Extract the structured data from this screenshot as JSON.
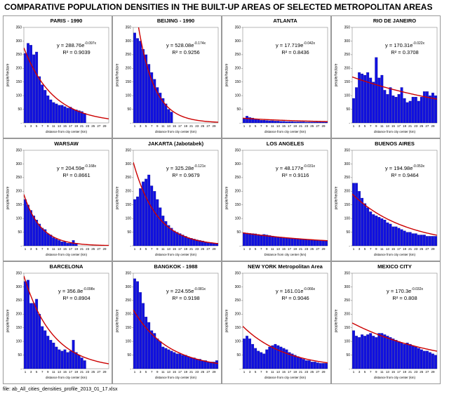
{
  "title": "COMPARATIVE POPULATION DENSITIES IN THE BUILT-UP AREAS OF SELECTED METROPOLITAN AREAS",
  "footer": "file: ab_All_cities_densities_profile_2013_01_17.xlsx",
  "chart_data": [
    {
      "type": "bar",
      "title": "PARIS - 1990",
      "x_label": "distance from city center (km)",
      "y_label": "people/hectare",
      "color": "#1010e0",
      "trend_color": "#cc0000",
      "categories": [
        1,
        null,
        3,
        null,
        5,
        null,
        7,
        null,
        9,
        null,
        11,
        null,
        13,
        null,
        15,
        null,
        17,
        null,
        19,
        null,
        21,
        null,
        23,
        null,
        25,
        null,
        27,
        null,
        29,
        null
      ],
      "values": [
        255,
        292,
        285,
        250,
        260,
        170,
        140,
        120,
        100,
        85,
        75,
        70,
        65,
        65,
        60,
        55,
        58,
        50,
        48,
        45,
        42,
        35,
        null,
        null,
        null,
        null,
        null,
        null,
        null,
        null
      ],
      "ylim": [
        0,
        350
      ],
      "yticks": [
        {
          "value": 0,
          "label": "-"
        },
        50,
        100,
        150,
        200,
        250,
        300,
        350
      ],
      "equation": "y = 288.76e",
      "exponent": "-0.097x",
      "r2": "R² = 0.9039",
      "fit": {
        "a": 288.76,
        "b": -0.097
      }
    },
    {
      "type": "bar",
      "title": "BEIJING - 1990",
      "x_label": "distance from city center (km)",
      "y_label": "people/hectare",
      "color": "#1010e0",
      "trend_color": "#cc0000",
      "categories": [
        1,
        null,
        3,
        null,
        5,
        null,
        7,
        null,
        9,
        null,
        11,
        null,
        13,
        null,
        15,
        null,
        17,
        null,
        19,
        null,
        21,
        null,
        23,
        null,
        25,
        null,
        27,
        null,
        29,
        null
      ],
      "values": [
        330,
        310,
        300,
        270,
        250,
        215,
        185,
        160,
        130,
        110,
        90,
        70,
        50,
        40,
        null,
        null,
        null,
        null,
        null,
        null,
        null,
        null,
        null,
        null,
        null,
        null,
        null,
        null,
        null,
        null
      ],
      "ylim": [
        0,
        350
      ],
      "yticks": [
        {
          "value": 0,
          "label": "-"
        },
        50,
        100,
        150,
        200,
        250,
        300,
        350
      ],
      "equation": "y = 528.08e",
      "exponent": "-0.174x",
      "r2": "R² = 0.9256",
      "fit": {
        "a": 528.08,
        "b": -0.174
      }
    },
    {
      "type": "bar",
      "title": "ATLANTA",
      "x_label": "distance from city center (km)",
      "y_label": "people/hectare",
      "color": "#1010e0",
      "trend_color": "#cc0000",
      "categories": [
        1,
        null,
        3,
        null,
        5,
        null,
        7,
        null,
        9,
        null,
        11,
        null,
        13,
        null,
        15,
        null,
        17,
        null,
        19,
        null,
        21,
        null,
        23,
        null,
        25,
        null,
        27,
        null,
        29,
        null
      ],
      "values": [
        15,
        25,
        20,
        18,
        15,
        12,
        10,
        10,
        9,
        8,
        8,
        7,
        7,
        6,
        6,
        5,
        5,
        5,
        4,
        4,
        4,
        4,
        3,
        3,
        3,
        3,
        3,
        3,
        3,
        3
      ],
      "ylim": [
        0,
        350
      ],
      "yticks": [
        {
          "value": 0,
          "label": "-"
        },
        50,
        100,
        150,
        200,
        250,
        300,
        350
      ],
      "equation": "y = 17.719e",
      "exponent": "-0.042x",
      "r2": "R² = 0.8436",
      "fit": {
        "a": 17.719,
        "b": -0.042
      }
    },
    {
      "type": "bar",
      "title": "RIO DE JANEIRO",
      "x_label": "distance from city center (km)",
      "y_label": "people/hectare",
      "color": "#1010e0",
      "trend_color": "#cc0000",
      "categories": [
        1,
        null,
        3,
        null,
        5,
        null,
        7,
        null,
        9,
        null,
        11,
        null,
        13,
        null,
        15,
        null,
        17,
        null,
        19,
        null,
        21,
        null,
        23,
        null,
        25,
        null,
        27,
        null,
        29,
        null
      ],
      "values": [
        90,
        130,
        185,
        180,
        175,
        185,
        165,
        150,
        240,
        165,
        175,
        120,
        105,
        130,
        100,
        95,
        105,
        130,
        90,
        75,
        80,
        95,
        95,
        80,
        95,
        115,
        115,
        100,
        110,
        100
      ],
      "ylim": [
        0,
        350
      ],
      "yticks": [
        {
          "value": 0,
          "label": "-"
        },
        50,
        100,
        150,
        200,
        250,
        300,
        350
      ],
      "equation": "y = 170.31e",
      "exponent": "-0.022x",
      "r2": "R² = 0.3708",
      "fit": {
        "a": 170.31,
        "b": -0.022
      }
    },
    {
      "type": "bar",
      "title": "WARSAW",
      "x_label": "distance from city center (km)",
      "y_label": "people/hectare",
      "color": "#1010e0",
      "trend_color": "#cc0000",
      "categories": [
        1,
        null,
        3,
        null,
        5,
        null,
        7,
        null,
        9,
        null,
        11,
        null,
        13,
        null,
        15,
        null,
        17,
        null,
        19,
        null,
        21,
        null,
        23,
        null,
        25,
        null,
        27,
        null,
        29,
        null
      ],
      "values": [
        170,
        150,
        130,
        110,
        95,
        80,
        65,
        60,
        45,
        40,
        30,
        25,
        20,
        15,
        15,
        10,
        10,
        20,
        10,
        null,
        null,
        null,
        null,
        null,
        null,
        null,
        null,
        null,
        null,
        null
      ],
      "ylim": [
        0,
        350
      ],
      "yticks": [
        {
          "value": 0,
          "label": "-"
        },
        50,
        100,
        150,
        200,
        250,
        300,
        350
      ],
      "equation": "y = 204.59e",
      "exponent": "-0.168x",
      "r2": "R² = 0.8661",
      "fit": {
        "a": 204.59,
        "b": -0.168
      }
    },
    {
      "type": "bar",
      "title": "JAKARTA (Jabotabek)",
      "x_label": "distance from city center (km)",
      "y_label": "people/hectare",
      "color": "#1010e0",
      "trend_color": "#cc0000",
      "categories": [
        1,
        null,
        3,
        null,
        5,
        null,
        7,
        null,
        9,
        null,
        11,
        null,
        13,
        null,
        15,
        null,
        17,
        null,
        19,
        null,
        21,
        null,
        23,
        null,
        25,
        null,
        27,
        null,
        29,
        null
      ],
      "values": [
        170,
        180,
        210,
        235,
        245,
        260,
        220,
        200,
        170,
        140,
        110,
        90,
        75,
        65,
        55,
        50,
        45,
        40,
        35,
        30,
        28,
        25,
        22,
        20,
        18,
        15,
        13,
        12,
        10,
        10
      ],
      "ylim": [
        0,
        350
      ],
      "yticks": [
        {
          "value": 0,
          "label": "-"
        },
        50,
        100,
        150,
        200,
        250,
        300,
        350
      ],
      "equation": "y = 325.28e",
      "exponent": "-0.121x",
      "r2": "R² = 0.9679",
      "fit": {
        "a": 325.28,
        "b": -0.121
      }
    },
    {
      "type": "bar",
      "title": "LOS ANGELES",
      "x_label": "Distance from city center (km)",
      "y_label": "people/hectare",
      "color": "#1010e0",
      "trend_color": "#cc0000",
      "categories": [
        1,
        null,
        3,
        null,
        5,
        null,
        7,
        null,
        9,
        null,
        11,
        null,
        13,
        null,
        15,
        null,
        17,
        null,
        19,
        null,
        21,
        null,
        23,
        null,
        25,
        null,
        27,
        null,
        29,
        null
      ],
      "values": [
        48,
        47,
        46,
        45,
        44,
        42,
        40,
        42,
        40,
        38,
        36,
        34,
        33,
        32,
        30,
        30,
        29,
        28,
        27,
        26,
        25,
        24,
        23,
        22,
        22,
        21,
        20,
        20,
        19,
        19
      ],
      "ylim": [
        0,
        350
      ],
      "yticks": [
        {
          "value": 0,
          "label": "-"
        },
        50,
        100,
        150,
        200,
        250,
        300,
        350
      ],
      "equation": "y = 48.177e",
      "exponent": "-0.031x",
      "r2": "R² = 0.9116",
      "fit": {
        "a": 48.177,
        "b": -0.031
      }
    },
    {
      "type": "bar",
      "title": "BUENOS AIRES",
      "x_label": "distance from city center (km)",
      "y_label": "people/hectare",
      "color": "#1010e0",
      "trend_color": "#cc0000",
      "categories": [
        1,
        null,
        3,
        null,
        5,
        null,
        7,
        null,
        9,
        null,
        11,
        null,
        13,
        null,
        15,
        null,
        17,
        null,
        19,
        null,
        21,
        null,
        23,
        null,
        25,
        null,
        27,
        null,
        29,
        null
      ],
      "values": [
        230,
        230,
        200,
        175,
        155,
        140,
        125,
        115,
        110,
        105,
        100,
        95,
        85,
        80,
        70,
        70,
        65,
        60,
        55,
        50,
        50,
        45,
        45,
        40,
        40,
        40,
        35,
        35,
        35,
        35
      ],
      "ylim": [
        0,
        350
      ],
      "yticks": [
        {
          "value": 0,
          "label": "-"
        },
        50,
        100,
        150,
        200,
        250,
        300,
        350
      ],
      "equation": "y = 194.98e",
      "exponent": "-0.053x",
      "r2": "R² = 0.9464",
      "fit": {
        "a": 194.98,
        "b": -0.053
      }
    },
    {
      "type": "bar",
      "title": "BARCELONA",
      "x_label": "distance from city center (km)",
      "y_label": "people/hectare",
      "color": "#1010e0",
      "trend_color": "#cc0000",
      "categories": [
        1,
        null,
        3,
        null,
        5,
        null,
        7,
        null,
        9,
        null,
        11,
        null,
        13,
        null,
        15,
        null,
        17,
        null,
        19,
        null,
        21,
        null,
        23,
        null,
        25,
        null,
        27,
        null,
        29,
        null
      ],
      "values": [
        320,
        325,
        240,
        240,
        255,
        200,
        155,
        140,
        120,
        105,
        95,
        80,
        70,
        65,
        70,
        60,
        65,
        105,
        60,
        50,
        40,
        30,
        null,
        null,
        null,
        null,
        null,
        null,
        null,
        null
      ],
      "ylim": [
        0,
        350
      ],
      "yticks": [
        {
          "value": 0,
          "label": "-"
        },
        50,
        100,
        150,
        200,
        250,
        300,
        350
      ],
      "equation": "y = 356.8e",
      "exponent": "-0.098x",
      "r2": "R² = 0.8904",
      "fit": {
        "a": 356.8,
        "b": -0.098
      }
    },
    {
      "type": "bar",
      "title": "BANGKOK - 1988",
      "x_label": "distance from city center (km)",
      "y_label": "people/hectare",
      "color": "#1010e0",
      "trend_color": "#cc0000",
      "categories": [
        1,
        null,
        3,
        null,
        5,
        null,
        7,
        null,
        9,
        null,
        11,
        null,
        13,
        null,
        15,
        null,
        17,
        null,
        19,
        null,
        21,
        null,
        23,
        null,
        25,
        null,
        27,
        null,
        29,
        null
      ],
      "values": [
        330,
        320,
        280,
        240,
        190,
        170,
        140,
        130,
        110,
        100,
        80,
        75,
        70,
        65,
        60,
        55,
        55,
        50,
        50,
        45,
        40,
        40,
        35,
        35,
        30,
        30,
        25,
        25,
        25,
        30
      ],
      "ylim": [
        0,
        350
      ],
      "yticks": [
        {
          "value": 0,
          "label": "-"
        },
        50,
        100,
        150,
        200,
        250,
        300,
        350
      ],
      "equation": "y = 224.55e",
      "exponent": "-0.081x",
      "r2": "R² = 0.9198",
      "fit": {
        "a": 224.55,
        "b": -0.081
      }
    },
    {
      "type": "bar",
      "title": "NEW YORK Metropolitan Area",
      "x_label": "distance from city center (km)",
      "y_label": "people/hectare",
      "color": "#1010e0",
      "trend_color": "#cc0000",
      "categories": [
        1,
        null,
        3,
        null,
        5,
        null,
        7,
        null,
        9,
        null,
        11,
        null,
        13,
        null,
        15,
        null,
        17,
        null,
        19,
        null,
        21,
        null,
        23,
        null,
        25,
        null,
        27,
        null,
        29,
        null
      ],
      "values": [
        110,
        120,
        110,
        90,
        75,
        65,
        60,
        55,
        70,
        80,
        85,
        90,
        85,
        80,
        75,
        70,
        60,
        55,
        50,
        45,
        40,
        35,
        30,
        30,
        25,
        25,
        22,
        20,
        20,
        20
      ],
      "ylim": [
        0,
        350
      ],
      "yticks": [
        {
          "value": 0,
          "label": "-"
        },
        50,
        100,
        150,
        200,
        250,
        300,
        350
      ],
      "equation": "y = 161.01e",
      "exponent": "-0.066x",
      "r2": "R² = 0.9046",
      "fit": {
        "a": 161.01,
        "b": -0.066
      }
    },
    {
      "type": "bar",
      "title": "MEXICO CITY",
      "x_label": "distance from city center (km)",
      "y_label": "people/hectare",
      "color": "#1010e0",
      "trend_color": "#cc0000",
      "categories": [
        1,
        null,
        3,
        null,
        5,
        null,
        7,
        null,
        9,
        null,
        11,
        null,
        13,
        null,
        15,
        null,
        17,
        null,
        19,
        null,
        21,
        null,
        23,
        null,
        25,
        null,
        27,
        null,
        29,
        null
      ],
      "values": [
        140,
        120,
        115,
        125,
        120,
        125,
        130,
        120,
        115,
        130,
        130,
        125,
        120,
        115,
        110,
        105,
        100,
        95,
        90,
        95,
        90,
        85,
        80,
        75,
        70,
        65,
        65,
        60,
        55,
        50
      ],
      "ylim": [
        0,
        350
      ],
      "yticks": [
        {
          "value": 0,
          "label": "-"
        },
        50,
        100,
        150,
        200,
        250,
        300,
        350
      ],
      "equation": "y = 170.3e",
      "exponent": "-0.032x",
      "r2": "R² = 0.808",
      "fit": {
        "a": 170.3,
        "b": -0.032
      }
    }
  ]
}
